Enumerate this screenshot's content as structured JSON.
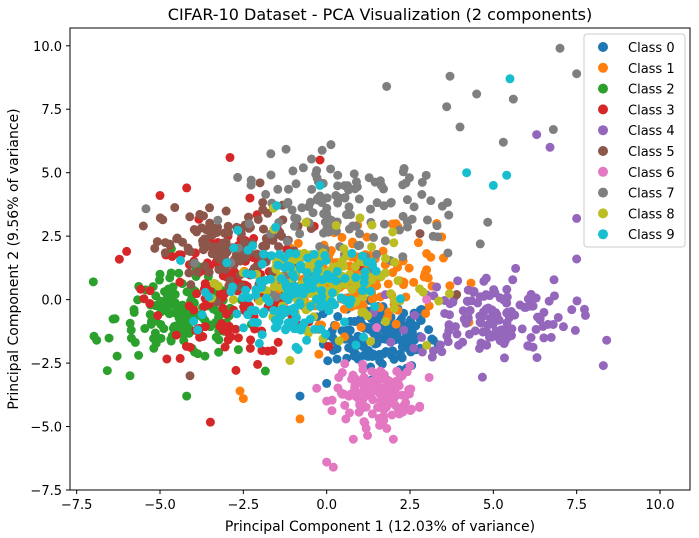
{
  "chart_data": {
    "type": "scatter",
    "title": "CIFAR-10 Dataset - PCA Visualization (2 components)",
    "xlabel": "Principal Component 1 (12.03% of variance)",
    "ylabel": "Principal Component 2 (9.56% of variance)",
    "xlim": [
      -7.7,
      10.9
    ],
    "ylim": [
      -7.5,
      10.7
    ],
    "xticks": [
      -7.5,
      -5.0,
      -2.5,
      0.0,
      2.5,
      5.0,
      7.5,
      10.0
    ],
    "yticks": [
      -7.5,
      -5.0,
      -2.5,
      0.0,
      2.5,
      5.0,
      7.5,
      10.0
    ],
    "xtick_labels": [
      "−7.5",
      "−5.0",
      "−2.5",
      "0.0",
      "2.5",
      "5.0",
      "7.5",
      "10.0"
    ],
    "ytick_labels": [
      "−7.5",
      "−5.0",
      "−2.5",
      "0.0",
      "2.5",
      "5.0",
      "7.5",
      "10.0"
    ],
    "grid": false,
    "legend_position": "top-right",
    "series": [
      {
        "name": "Class 0",
        "color": "#1f77b4",
        "center": [
          1.6,
          -1.4
        ],
        "spread": [
          1.1,
          0.9
        ],
        "count": 150,
        "extra": [
          [
            -0.8,
            -3.8
          ],
          [
            0.0,
            -3.3
          ],
          [
            3.2,
            -1.6
          ],
          [
            2.4,
            -2.7
          ],
          [
            0.2,
            -2.0
          ]
        ]
      },
      {
        "name": "Class 1",
        "color": "#ff7f0e",
        "center": [
          1.0,
          0.9
        ],
        "spread": [
          1.6,
          1.2
        ],
        "count": 150,
        "extra": [
          [
            -2.5,
            -3.9
          ],
          [
            -0.8,
            -4.7
          ],
          [
            3.3,
            3.0
          ],
          [
            -2.6,
            -3.6
          ]
        ]
      },
      {
        "name": "Class 2",
        "color": "#2ca02c",
        "center": [
          -4.2,
          -0.7
        ],
        "spread": [
          1.4,
          1.1
        ],
        "count": 160,
        "extra": [
          [
            -7.0,
            0.7
          ],
          [
            -6.9,
            -1.6
          ],
          [
            -5.9,
            -3.0
          ],
          [
            -4.2,
            -3.8
          ],
          [
            -5.0,
            1.0
          ]
        ]
      },
      {
        "name": "Class 3",
        "color": "#d62728",
        "center": [
          -2.8,
          0.3
        ],
        "spread": [
          1.6,
          1.7
        ],
        "count": 160,
        "extra": [
          [
            -2.9,
            5.6
          ],
          [
            -5.0,
            4.1
          ],
          [
            -4.2,
            4.4
          ],
          [
            -0.2,
            5.5
          ],
          [
            -6.0,
            1.9
          ],
          [
            -2.3,
            4.0
          ]
        ]
      },
      {
        "name": "Class 4",
        "color": "#9467bd",
        "center": [
          4.9,
          -0.7
        ],
        "spread": [
          1.6,
          1.1
        ],
        "count": 150,
        "extra": [
          [
            8.4,
            -1.6
          ],
          [
            8.3,
            -2.6
          ],
          [
            7.5,
            1.6
          ],
          [
            6.3,
            6.5
          ],
          [
            6.7,
            6.0
          ],
          [
            7.5,
            3.2
          ]
        ]
      },
      {
        "name": "Class 5",
        "color": "#8c564b",
        "center": [
          -2.8,
          1.9
        ],
        "spread": [
          1.4,
          1.2
        ],
        "count": 140,
        "extra": [
          [
            -5.5,
            2.9
          ],
          [
            -4.1,
            -3.0
          ],
          [
            -2.0,
            4.6
          ],
          [
            2.8,
            2.6
          ],
          [
            3.9,
            0.2
          ]
        ]
      },
      {
        "name": "Class 6",
        "color": "#e377c2",
        "center": [
          1.5,
          -3.7
        ],
        "spread": [
          0.8,
          0.7
        ],
        "count": 140,
        "extra": [
          [
            0.2,
            -6.6
          ],
          [
            0.0,
            -6.4
          ],
          [
            0.8,
            -5.5
          ],
          [
            2.0,
            -5.5
          ],
          [
            3.0,
            0.0
          ],
          [
            1.5,
            -1.1
          ],
          [
            0.0,
            -4.0
          ]
        ]
      },
      {
        "name": "Class 7",
        "color": "#7f7f7f",
        "center": [
          0.5,
          3.4
        ],
        "spread": [
          2.1,
          1.5
        ],
        "count": 150,
        "extra": [
          [
            7.0,
            9.9
          ],
          [
            7.5,
            8.9
          ],
          [
            3.7,
            8.8
          ],
          [
            4.5,
            8.1
          ],
          [
            5.6,
            7.9
          ],
          [
            1.8,
            8.4
          ],
          [
            6.8,
            6.7
          ],
          [
            4.0,
            6.8
          ],
          [
            3.6,
            7.6
          ],
          [
            5.3,
            6.2
          ]
        ]
      },
      {
        "name": "Class 8",
        "color": "#bcbd22",
        "center": [
          -0.1,
          0.6
        ],
        "spread": [
          1.7,
          1.2
        ],
        "count": 150,
        "extra": [
          [
            -2.8,
            0.0
          ],
          [
            -1.6,
            3.6
          ],
          [
            3.0,
            -1.8
          ],
          [
            -0.6,
            -1.2
          ],
          [
            -1.1,
            -2.4
          ]
        ]
      },
      {
        "name": "Class 9",
        "color": "#17becf",
        "center": [
          -1.0,
          0.3
        ],
        "spread": [
          1.5,
          1.3
        ],
        "count": 160,
        "extra": [
          [
            5.5,
            8.7
          ],
          [
            5.4,
            4.9
          ],
          [
            5.0,
            4.5
          ],
          [
            4.2,
            5.0
          ],
          [
            -0.2,
            4.5
          ],
          [
            -1.5,
            3.7
          ]
        ]
      }
    ]
  }
}
